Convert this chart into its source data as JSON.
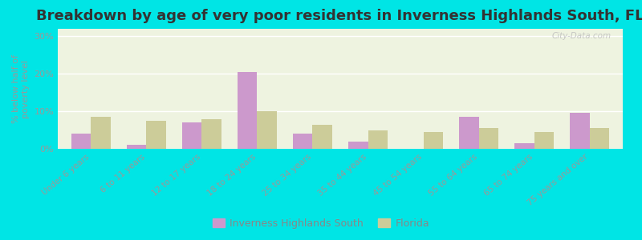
{
  "title": "Breakdown by age of very poor residents in Inverness Highlands South, FL",
  "categories": [
    "Under 6 years",
    "6 to 11 years",
    "12 to 17 years",
    "18 to 24 years",
    "25 to 34 years",
    "35 to 44 years",
    "45 to 54 years",
    "55 to 64 years",
    "65 to 74 years",
    "75 years and over"
  ],
  "inverness_values": [
    4.0,
    1.0,
    7.0,
    20.5,
    4.0,
    2.0,
    0.0,
    8.5,
    1.5,
    9.5
  ],
  "florida_values": [
    8.5,
    7.5,
    8.0,
    10.0,
    6.5,
    5.0,
    4.5,
    5.5,
    4.5,
    5.5
  ],
  "inverness_color": "#cc99cc",
  "florida_color": "#cccc99",
  "ylabel": "% below half of\npoverty level",
  "ylim": [
    0,
    32
  ],
  "yticks": [
    0,
    10,
    20,
    30
  ],
  "ytick_labels": [
    "0%",
    "10%",
    "20%",
    "30%"
  ],
  "plot_bg": "#eef3e0",
  "outer_bg": "#00e5e5",
  "legend_label_1": "Inverness Highlands South",
  "legend_label_2": "Florida",
  "title_fontsize": 13,
  "bar_width": 0.35
}
